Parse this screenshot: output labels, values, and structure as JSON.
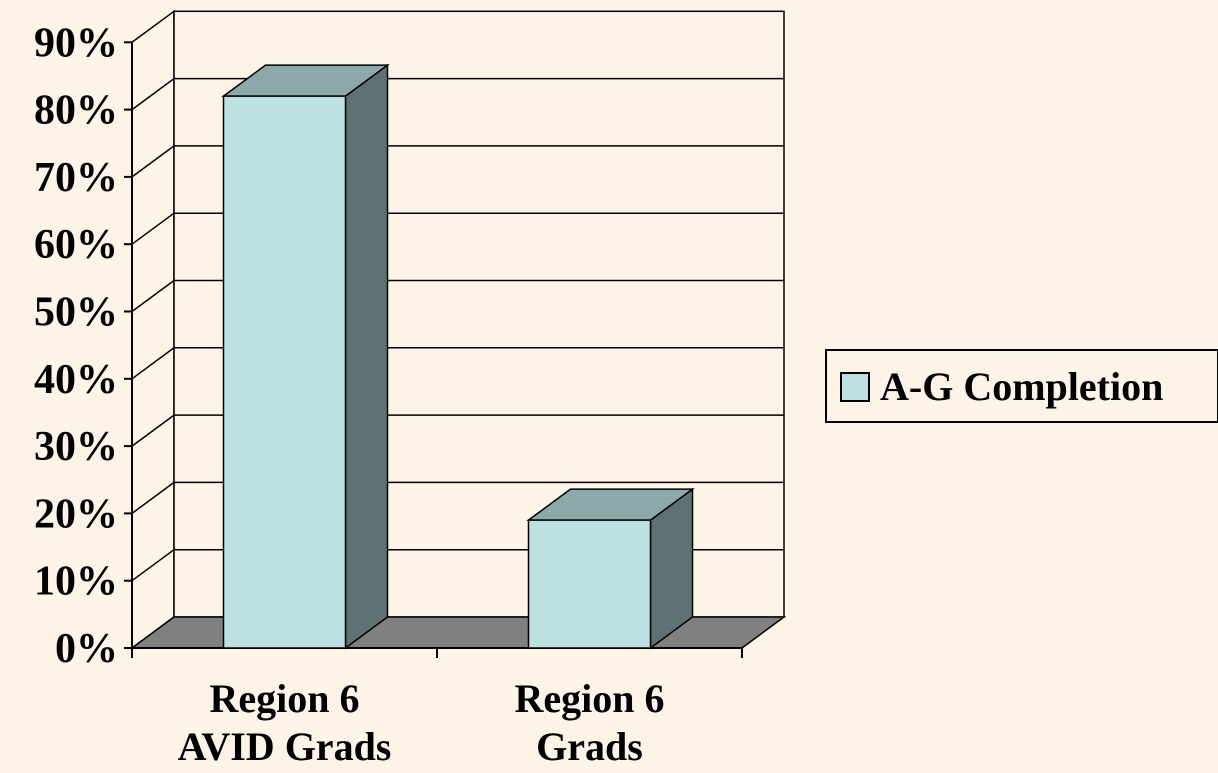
{
  "chart_data": {
    "type": "bar",
    "style": "3d",
    "categories": [
      [
        "Region 6",
        "AVID Grads"
      ],
      [
        "Region 6",
        "Grads"
      ]
    ],
    "series": [
      {
        "name": "A-G Completion",
        "values": [
          82,
          19
        ]
      }
    ],
    "y_ticks": [
      "0%",
      "10%",
      "20%",
      "30%",
      "40%",
      "50%",
      "60%",
      "70%",
      "80%",
      "90%"
    ],
    "ylim": [
      0,
      90
    ],
    "grid": true,
    "legend_position": "right",
    "colors": {
      "background": "#fdf4e7",
      "bar_front": "#bde1e3",
      "bar_top": "#8ba8ab",
      "bar_side": "#5e7273",
      "floor": "#808080",
      "grid": "#000000"
    }
  }
}
